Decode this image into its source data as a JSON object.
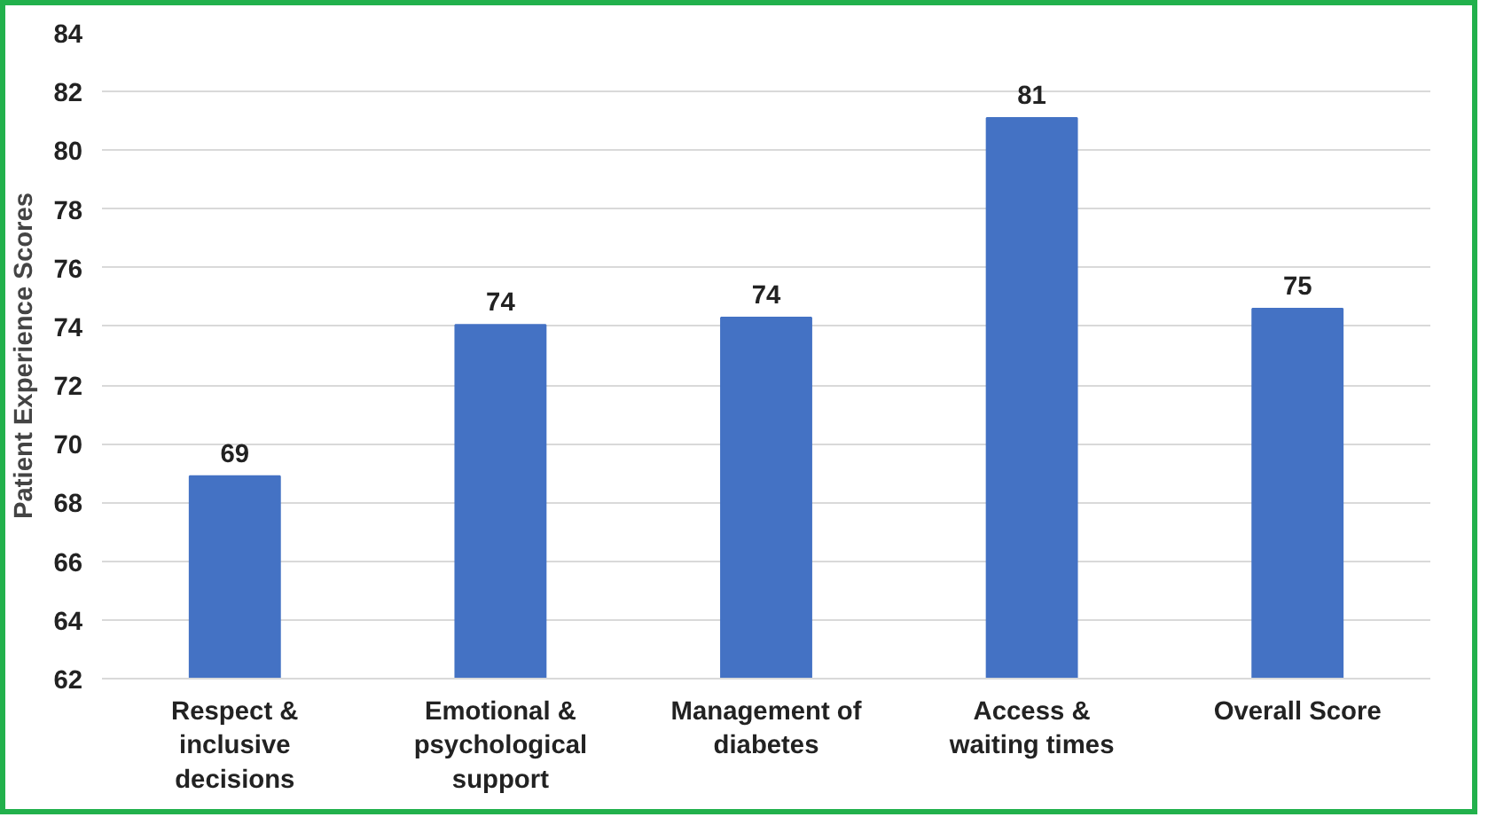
{
  "chart_data": {
    "type": "bar",
    "ylabel": "Patient Experience Scores",
    "categories": [
      "Respect & inclusive decisions",
      "Emotional & psychological support",
      "Management of diabetes",
      "Access & waiting times",
      "Overall Score"
    ],
    "values": [
      68.9,
      74.05,
      74.3,
      81.1,
      74.6
    ],
    "value_labels": [
      "69",
      "74",
      "74",
      "81",
      "75"
    ],
    "color": "#4472c4",
    "ylim": [
      62,
      84
    ],
    "yticks": [
      62,
      64,
      66,
      68,
      70,
      72,
      74,
      76,
      78,
      80,
      82,
      84
    ],
    "grid": "y"
  }
}
